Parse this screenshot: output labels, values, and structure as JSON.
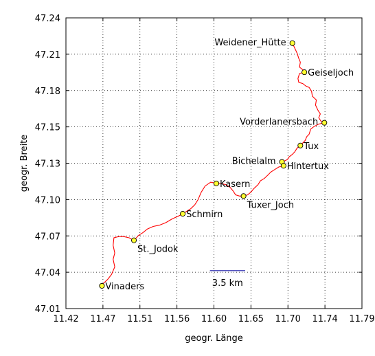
{
  "chart_data": {
    "type": "scatter",
    "xlabel": "geogr. Länge",
    "ylabel": "geogr. Breite",
    "xlim": [
      11.42,
      11.79
    ],
    "ylim": [
      47.01,
      47.24
    ],
    "x_ticks": [
      "11.42",
      "11.47",
      "11.51",
      "11.56",
      "11.60",
      "11.65",
      "11.70",
      "11.74",
      "11.79"
    ],
    "y_ticks": [
      "47.24",
      "47.21",
      "47.18",
      "47.15",
      "47.13",
      "47.10",
      "47.07",
      "47.04",
      "47.01"
    ],
    "grid": true,
    "track_color": "#ff0000",
    "marker_color": "#ffff33",
    "scale_color": "#1a1aa8",
    "scale_bar": {
      "label": "3.5 km",
      "lon_start": 11.6,
      "lon_end": 11.644,
      "lat": 47.04
    },
    "waypoints": [
      {
        "name": "Weidener_Hütte",
        "lon": 11.703,
        "lat": 47.22,
        "label_side": "left"
      },
      {
        "name": "Geiseljoch",
        "lon": 11.718,
        "lat": 47.197,
        "label_side": "right"
      },
      {
        "name": "Vorderlanersbach",
        "lon": 11.743,
        "lat": 47.157,
        "label_side": "left"
      },
      {
        "name": "Tux",
        "lon": 11.713,
        "lat": 47.139,
        "label_side": "right"
      },
      {
        "name": "Bichelalm",
        "lon": 11.69,
        "lat": 47.126,
        "label_side": "left"
      },
      {
        "name": "Hintertux",
        "lon": 11.692,
        "lat": 47.123,
        "label_side": "right"
      },
      {
        "name": "Kasern",
        "lon": 11.608,
        "lat": 47.109,
        "label_side": "right"
      },
      {
        "name": "Tuxer_Joch",
        "lon": 11.642,
        "lat": 47.099,
        "label_side": "right-below"
      },
      {
        "name": "Schmirn",
        "lon": 11.566,
        "lat": 47.085,
        "label_side": "right"
      },
      {
        "name": "St._Jodok",
        "lon": 11.505,
        "lat": 47.064,
        "label_side": "right-below"
      },
      {
        "name": "Vinaders",
        "lon": 11.465,
        "lat": 47.028,
        "label_side": "right"
      }
    ],
    "track": [
      [
        11.703,
        47.22
      ],
      [
        11.706,
        47.216
      ],
      [
        11.709,
        47.212
      ],
      [
        11.711,
        47.208
      ],
      [
        11.713,
        47.205
      ],
      [
        11.712,
        47.201
      ],
      [
        11.716,
        47.199
      ],
      [
        11.718,
        47.197
      ],
      [
        11.712,
        47.196
      ],
      [
        11.71,
        47.192
      ],
      [
        11.711,
        47.189
      ],
      [
        11.716,
        47.188
      ],
      [
        11.72,
        47.186
      ],
      [
        11.724,
        47.185
      ],
      [
        11.727,
        47.182
      ],
      [
        11.728,
        47.178
      ],
      [
        11.733,
        47.175
      ],
      [
        11.732,
        47.171
      ],
      [
        11.735,
        47.167
      ],
      [
        11.738,
        47.164
      ],
      [
        11.736,
        47.161
      ],
      [
        11.739,
        47.158
      ],
      [
        11.743,
        47.157
      ],
      [
        11.736,
        47.156
      ],
      [
        11.73,
        47.154
      ],
      [
        11.726,
        47.152
      ],
      [
        11.724,
        47.148
      ],
      [
        11.721,
        47.146
      ],
      [
        11.719,
        47.143
      ],
      [
        11.716,
        47.141
      ],
      [
        11.713,
        47.139
      ],
      [
        11.709,
        47.137
      ],
      [
        11.706,
        47.134
      ],
      [
        11.703,
        47.132
      ],
      [
        11.699,
        47.13
      ],
      [
        11.697,
        47.128
      ],
      [
        11.694,
        47.127
      ],
      [
        11.69,
        47.126
      ],
      [
        11.692,
        47.123
      ],
      [
        11.686,
        47.122
      ],
      [
        11.681,
        47.12
      ],
      [
        11.676,
        47.118
      ],
      [
        11.673,
        47.116
      ],
      [
        11.668,
        47.113
      ],
      [
        11.663,
        47.111
      ],
      [
        11.66,
        47.108
      ],
      [
        11.655,
        47.105
      ],
      [
        11.651,
        47.102
      ],
      [
        11.647,
        47.1
      ],
      [
        11.642,
        47.099
      ],
      [
        11.637,
        47.099
      ],
      [
        11.632,
        47.1
      ],
      [
        11.629,
        47.103
      ],
      [
        11.625,
        47.106
      ],
      [
        11.62,
        47.108
      ],
      [
        11.614,
        47.109
      ],
      [
        11.608,
        47.109
      ],
      [
        11.601,
        47.11
      ],
      [
        11.594,
        47.107
      ],
      [
        11.589,
        47.102
      ],
      [
        11.585,
        47.096
      ],
      [
        11.581,
        47.092
      ],
      [
        11.576,
        47.089
      ],
      [
        11.571,
        47.087
      ],
      [
        11.566,
        47.085
      ],
      [
        11.56,
        47.083
      ],
      [
        11.553,
        47.081
      ],
      [
        11.545,
        47.078
      ],
      [
        11.537,
        47.076
      ],
      [
        11.529,
        47.075
      ],
      [
        11.522,
        47.073
      ],
      [
        11.516,
        47.07
      ],
      [
        11.511,
        47.068
      ],
      [
        11.505,
        47.064
      ],
      [
        11.499,
        47.066
      ],
      [
        11.492,
        47.067
      ],
      [
        11.486,
        47.067
      ],
      [
        11.48,
        47.066
      ],
      [
        11.479,
        47.06
      ],
      [
        11.481,
        47.054
      ],
      [
        11.479,
        47.049
      ],
      [
        11.481,
        47.043
      ],
      [
        11.477,
        47.037
      ],
      [
        11.472,
        47.033
      ],
      [
        11.467,
        47.03
      ],
      [
        11.465,
        47.028
      ]
    ]
  }
}
